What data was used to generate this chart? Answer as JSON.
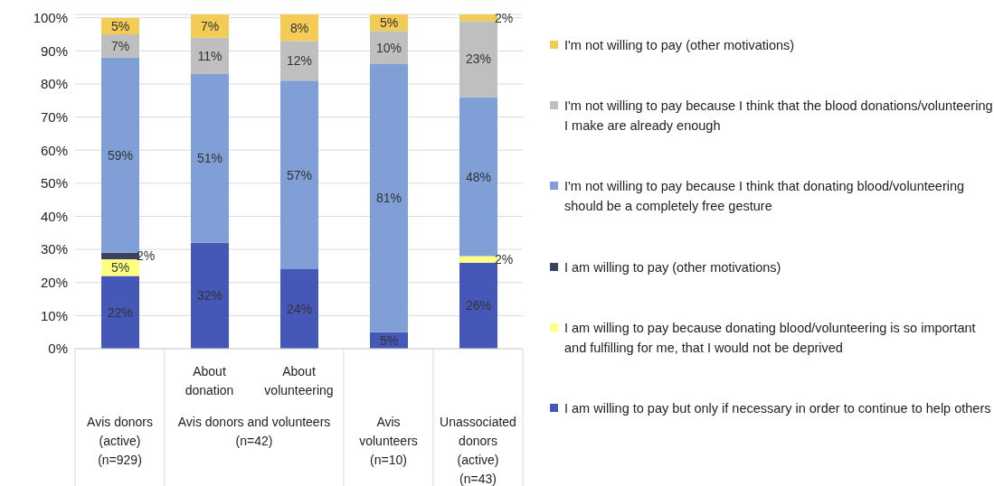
{
  "chart_data": {
    "type": "bar",
    "stacked": true,
    "categories": [
      "Avis donors (active) (n=929)",
      "About donation",
      "About volunteering",
      "Avis volunteers (n=10)",
      "Unassociated donors (active) (n=43)"
    ],
    "series": [
      {
        "name": "I am willing to pay but only if necessary in order to continue to help others",
        "color": "#4558b8",
        "values": [
          22,
          32,
          24,
          5,
          26
        ],
        "value_labels": [
          "22%",
          "32%",
          "24%",
          "5%",
          "26%"
        ]
      },
      {
        "name": "I am willing to pay because donating blood/volunteering is so important and fulfilling for me, that I would not be deprived",
        "color": "#ffff80",
        "values": [
          5,
          null,
          null,
          null,
          2
        ],
        "value_labels": [
          "5%",
          null,
          null,
          null,
          "2%"
        ]
      },
      {
        "name": "I am willing to pay (other motivations)",
        "color": "#3b4160",
        "values": [
          2,
          null,
          null,
          null,
          null
        ],
        "value_labels": [
          "2%",
          null,
          null,
          null,
          null
        ]
      },
      {
        "name": "I'm not willing to pay because I think that donating blood/volunteering should be a completely free gesture",
        "color": "#7f9fd6",
        "values": [
          59,
          51,
          57,
          81,
          48
        ],
        "value_labels": [
          "59%",
          "51%",
          "57%",
          "81%",
          "48%"
        ]
      },
      {
        "name": "I'm not willing to pay because I think that the blood donations/volunteering I make are already enough",
        "color": "#bfbfbf",
        "values": [
          7,
          11,
          12,
          10,
          23
        ],
        "value_labels": [
          "7%",
          "11%",
          "12%",
          "10%",
          "23%"
        ]
      },
      {
        "name": "I'm not willing to pay (other motivations)",
        "color": "#f2cc55",
        "values": [
          5,
          7,
          8,
          5,
          2
        ],
        "value_labels": [
          "5%",
          "7%",
          "8%",
          "5%",
          "2%"
        ]
      }
    ],
    "ylim": [
      0,
      101
    ],
    "yticks": [
      {
        "value": 0,
        "label": "0%"
      },
      {
        "value": 10,
        "label": "10%"
      },
      {
        "value": 20,
        "label": "20%"
      },
      {
        "value": 30,
        "label": "30%"
      },
      {
        "value": 40,
        "label": "40%"
      },
      {
        "value": 50,
        "label": "50%"
      },
      {
        "value": 60,
        "label": "60%"
      },
      {
        "value": 70,
        "label": "70%"
      },
      {
        "value": 80,
        "label": "80%"
      },
      {
        "value": 90,
        "label": "90%"
      },
      {
        "value": 100,
        "label": "100%"
      }
    ],
    "grid": "y",
    "legend": "right",
    "annotations": [
      "Avis donors and volunteers (n=42)"
    ]
  }
}
